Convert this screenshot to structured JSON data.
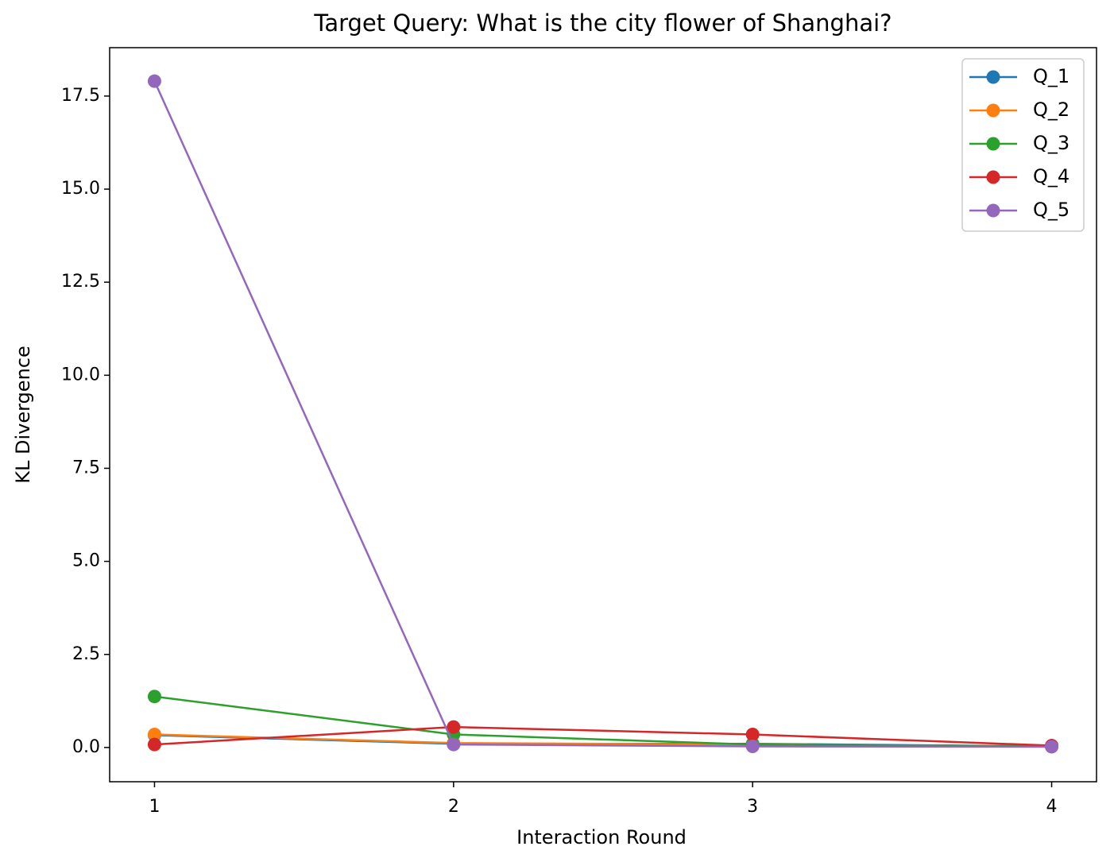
{
  "chart_data": {
    "type": "line",
    "title": "Target Query: What is the city flower of Shanghai?",
    "x_label": "Interaction Round",
    "y_label": "KL Divergence",
    "x": [
      1,
      2,
      3,
      4
    ],
    "series": [
      {
        "name": "Q_1",
        "color": "#1f77b4",
        "values": [
          0.33,
          0.1,
          0.1,
          0.03
        ]
      },
      {
        "name": "Q_2",
        "color": "#ff7f0e",
        "values": [
          0.35,
          0.12,
          0.08,
          0.03
        ]
      },
      {
        "name": "Q_3",
        "color": "#2ca02c",
        "values": [
          1.37,
          0.35,
          0.08,
          0.03
        ]
      },
      {
        "name": "Q_4",
        "color": "#d62728",
        "values": [
          0.08,
          0.55,
          0.35,
          0.05
        ]
      },
      {
        "name": "Q_5",
        "color": "#9467bd",
        "values": [
          17.9,
          0.08,
          0.03,
          0.02
        ]
      }
    ],
    "xlim": [
      0.85,
      4.15
    ],
    "xticks": [
      1,
      2,
      3,
      4
    ],
    "ylim": [
      -0.92,
      18.8
    ],
    "yticks": [
      {
        "value": 0,
        "label": "0.0"
      },
      {
        "value": 2.5,
        "label": "2.5"
      },
      {
        "value": 5,
        "label": "5.0"
      },
      {
        "value": 7.5,
        "label": "7.5"
      },
      {
        "value": 10,
        "label": "10.0"
      },
      {
        "value": 12.5,
        "label": "12.5"
      },
      {
        "value": 15,
        "label": "15.0"
      },
      {
        "value": 17.5,
        "label": "17.5"
      }
    ],
    "legend": "upper right",
    "grid": false
  }
}
